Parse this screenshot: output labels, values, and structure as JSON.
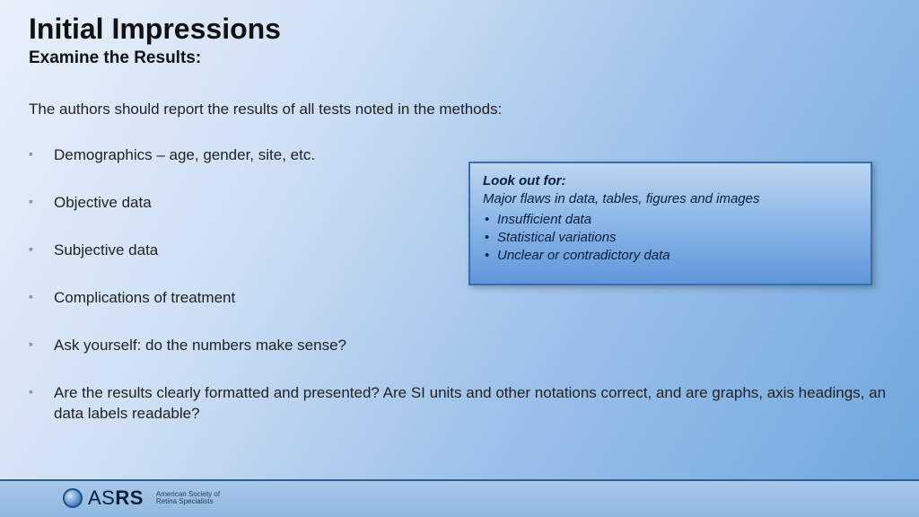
{
  "colors": {
    "bg_gradient": [
      "#e8f0fa",
      "#cfe0f5",
      "#9ec2ea",
      "#6ea6dd"
    ],
    "callout_gradient": [
      "#bdd6f3",
      "#8fb9e8",
      "#5f96db"
    ],
    "callout_border": "#3a6ea5",
    "footer_border": "#2e5e93",
    "bullet_marker": "#8a97a6"
  },
  "typography": {
    "title_fontsize": 32,
    "subtitle_fontsize": 19,
    "body_fontsize": 17,
    "callout_fontsize": 15,
    "font_family": "Arial"
  },
  "title": "Initial Impressions",
  "subtitle": "Examine the Results:",
  "intro": "The authors should report the results of all tests noted in the methods:",
  "bullets": [
    "Demographics – age, gender, site, etc.",
    "Objective data",
    "Subjective data",
    "Complications of treatment",
    "Ask yourself: do the numbers make sense?",
    "Are the results clearly formatted and presented? Are SI units and other notations correct, and are graphs, axis headings, an data labels readable?"
  ],
  "callout": {
    "heading": "Look out for:",
    "sub": "Major flaws in data, tables, figures and images",
    "items": [
      "Insufficient data",
      "Statistical variations",
      "Unclear or contradictory data"
    ]
  },
  "logo": {
    "as": "AS",
    "rs": "RS",
    "tag_line1": "American Society of",
    "tag_line2": "Retina Specialists"
  }
}
